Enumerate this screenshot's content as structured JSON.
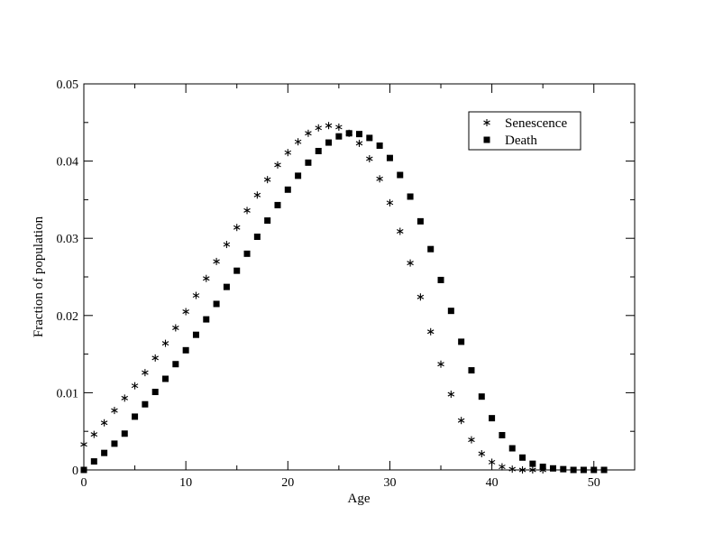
{
  "chart_data": {
    "type": "scatter",
    "title": "",
    "xlabel": "Age",
    "ylabel": "Fraction of population",
    "xlim": [
      0,
      54
    ],
    "ylim": [
      0,
      0.05
    ],
    "x_ticks": [
      "0",
      "10",
      "20",
      "30",
      "40",
      "50"
    ],
    "y_ticks": [
      "0",
      "0.01",
      "0.02",
      "0.03",
      "0.04",
      "0.05"
    ],
    "grid": false,
    "legend_position": "top-right",
    "series": [
      {
        "name": "Senescence",
        "marker": "asterisk",
        "color": "#000000",
        "x": [
          0,
          1,
          2,
          3,
          4,
          5,
          6,
          7,
          8,
          9,
          10,
          11,
          12,
          13,
          14,
          15,
          16,
          17,
          18,
          19,
          20,
          21,
          22,
          23,
          24,
          25,
          26,
          27,
          28,
          29,
          30,
          31,
          32,
          33,
          34,
          35,
          36,
          37,
          38,
          39,
          40,
          41,
          42,
          43,
          44,
          45
        ],
        "y": [
          0.0033,
          0.0046,
          0.0061,
          0.0077,
          0.0093,
          0.0109,
          0.0126,
          0.0145,
          0.0164,
          0.0184,
          0.0205,
          0.0226,
          0.0248,
          0.027,
          0.0292,
          0.0314,
          0.0336,
          0.0356,
          0.0376,
          0.0395,
          0.0411,
          0.0425,
          0.0436,
          0.0443,
          0.0446,
          0.0444,
          0.0436,
          0.0423,
          0.0403,
          0.0377,
          0.0346,
          0.0309,
          0.0268,
          0.0224,
          0.0179,
          0.0137,
          0.0098,
          0.0064,
          0.0039,
          0.0021,
          0.001,
          0.0004,
          0.0001,
          0.0,
          0.0,
          0.0
        ]
      },
      {
        "name": "Death",
        "marker": "square",
        "color": "#000000",
        "x": [
          0,
          1,
          2,
          3,
          4,
          5,
          6,
          7,
          8,
          9,
          10,
          11,
          12,
          13,
          14,
          15,
          16,
          17,
          18,
          19,
          20,
          21,
          22,
          23,
          24,
          25,
          26,
          27,
          28,
          29,
          30,
          31,
          32,
          33,
          34,
          35,
          36,
          37,
          38,
          39,
          40,
          41,
          42,
          43,
          44,
          45,
          46,
          47,
          48,
          49,
          50,
          51
        ],
        "y": [
          0.0,
          0.0011,
          0.0022,
          0.0034,
          0.0047,
          0.0069,
          0.0085,
          0.0101,
          0.0118,
          0.0137,
          0.0155,
          0.0175,
          0.0195,
          0.0215,
          0.0237,
          0.0258,
          0.028,
          0.0302,
          0.0323,
          0.0343,
          0.0363,
          0.0381,
          0.0398,
          0.0413,
          0.0424,
          0.0432,
          0.0436,
          0.0435,
          0.043,
          0.042,
          0.0404,
          0.0382,
          0.0354,
          0.0322,
          0.0286,
          0.0246,
          0.0206,
          0.0166,
          0.0129,
          0.0095,
          0.0067,
          0.0045,
          0.0028,
          0.0016,
          0.0008,
          0.0004,
          0.0002,
          0.0001,
          0.0,
          0.0,
          0.0,
          0.0
        ]
      }
    ]
  }
}
